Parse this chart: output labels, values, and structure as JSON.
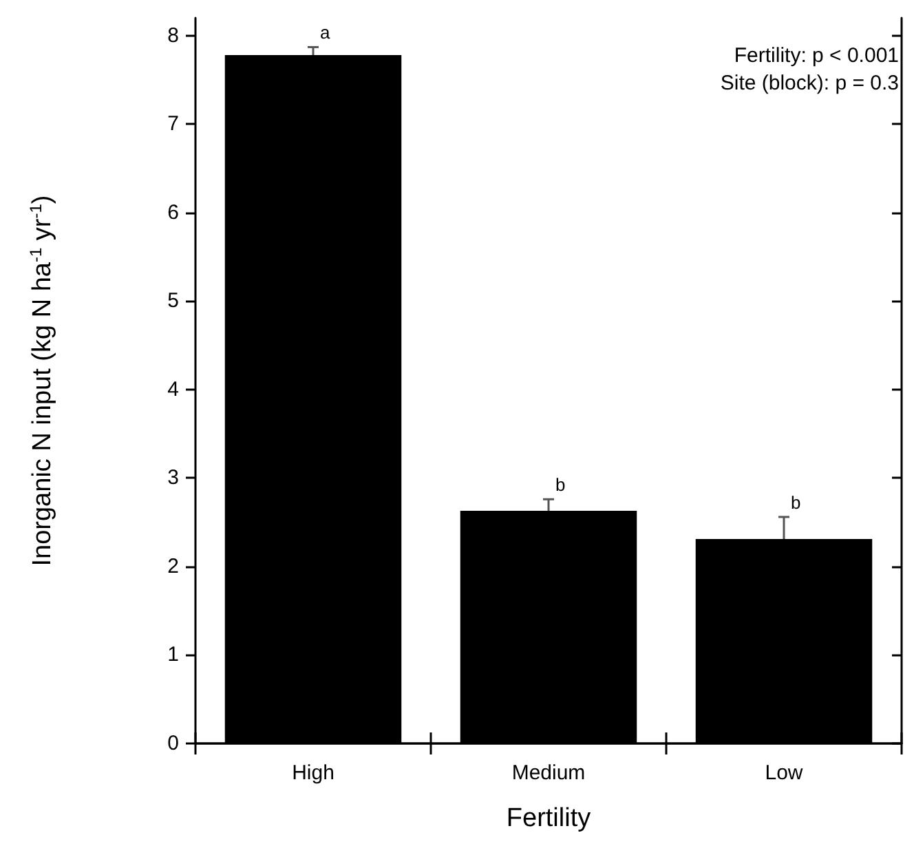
{
  "chart_data": {
    "type": "bar",
    "xlabel": "Fertility",
    "ylabel": "Inorganic N input (kg N ha$^{-1}$ yr$^{-1}$)",
    "categories": [
      "High",
      "Medium",
      "Low"
    ],
    "values": [
      7.78,
      2.63,
      2.31
    ],
    "color": "#000000",
    "errors": [
      [
        7.78,
        7.87
      ],
      [
        2.63,
        2.76
      ],
      [
        2.31,
        2.56
      ]
    ],
    "ylim": [
      0,
      8.2
    ],
    "yticks": [
      0,
      1,
      2,
      3,
      4,
      5,
      6,
      7,
      8
    ],
    "grid": false,
    "annotations": [
      "Fertility: p < 0.001",
      "Site (block): p = 0.3",
      {
        "text": "a",
        "x": "High",
        "y": 7.87
      },
      {
        "text": "b",
        "x": "Medium",
        "y": 2.76
      },
      {
        "text": "b",
        "x": "Low",
        "y": 2.56
      }
    ]
  }
}
